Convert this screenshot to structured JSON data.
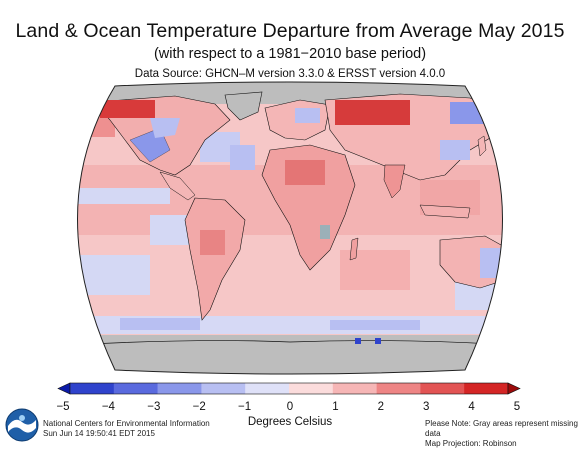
{
  "header": {
    "title": "Land & Ocean Temperature Departure from Average May 2015",
    "subtitle": "(with respect to a 1981−2010 base period)",
    "source": "Data Source: GHCN–M version 3.3.0 & ERSST version 4.0.0"
  },
  "legend": {
    "unit_label": "Degrees Celsius",
    "ticks": [
      "−5",
      "−4",
      "−3",
      "−2",
      "−1",
      "0",
      "1",
      "2",
      "3",
      "4",
      "5"
    ],
    "tick_values": [
      -5,
      -4,
      -3,
      -2,
      -1,
      0,
      1,
      2,
      3,
      4,
      5
    ],
    "range": [
      -5,
      5
    ],
    "band_colors": [
      "#0b1aa8",
      "#2f43cc",
      "#5a6ade",
      "#8a97ea",
      "#b8bff2",
      "#dfe1f8",
      "#fbdcdc",
      "#f6b6b6",
      "#ee8585",
      "#e25454",
      "#d42525",
      "#9c0a0a"
    ]
  },
  "map": {
    "projection": "Robinson",
    "missing_data_color": "#bdbdbd",
    "ocean_base_color": "#f6c7c7",
    "coastline_color": "#111111"
  },
  "footer": {
    "left_line1": "National Centers for Environmental Information",
    "left_line2": "Sun Jun 14 19:50:41 EDT 2015",
    "right_line1": "Please Note: Gray areas represent missing data",
    "right_line2": "Map Projection: Robinson"
  },
  "colors": {
    "warm_strong": "#d42525",
    "warm_mid": "#ee8585",
    "warm_light": "#f6c7c7",
    "cool_light": "#c7ccf3",
    "cool_mid": "#8a97ea",
    "cool_strong": "#2f43cc",
    "gray_missing": "#bdbdbd"
  }
}
